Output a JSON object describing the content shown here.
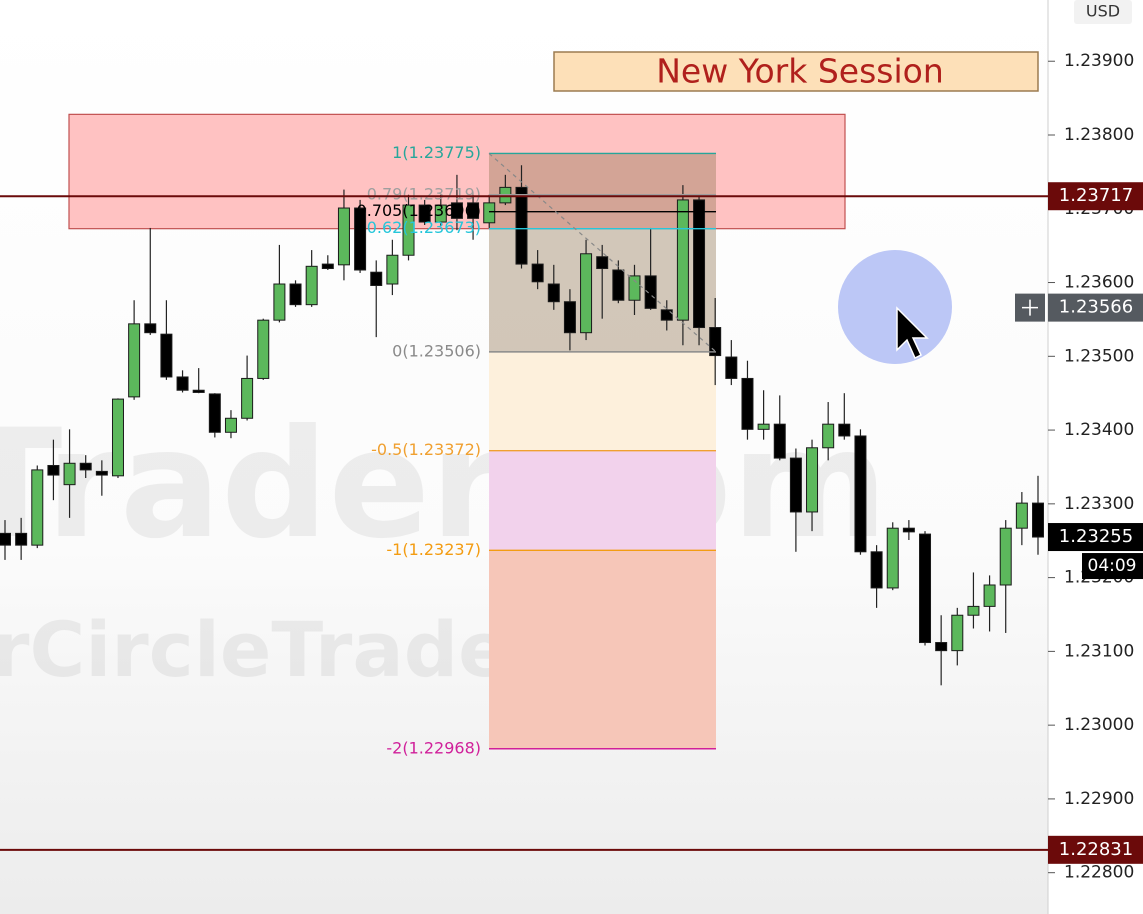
{
  "chart_data": {
    "type": "candlestick",
    "currency": "USD",
    "ylim": [
      1.22744,
      1.23983
    ],
    "yticks": [
      {
        "value": 1.239,
        "label": "1.23900"
      },
      {
        "value": 1.238,
        "label": "1.23800"
      },
      {
        "value": 1.237,
        "label": "1.23700"
      },
      {
        "value": 1.236,
        "label": "1.23600"
      },
      {
        "value": 1.235,
        "label": "1.23500"
      },
      {
        "value": 1.234,
        "label": "1.23400"
      },
      {
        "value": 1.233,
        "label": "1.23300"
      },
      {
        "value": 1.232,
        "label": "1.23200"
      },
      {
        "value": 1.231,
        "label": "1.23100"
      },
      {
        "value": 1.23,
        "label": "1.23000"
      },
      {
        "value": 1.229,
        "label": "1.22900"
      },
      {
        "value": 1.228,
        "label": "1.22800"
      }
    ],
    "up_color": "#5cb85c",
    "down_color": "#000000",
    "open": [
      1.2326,
      1.2326,
      1.23244,
      1.23352,
      1.23326,
      1.23355,
      1.23344,
      1.23338,
      1.23445,
      1.23544,
      1.2353,
      1.23472,
      1.23454,
      1.23449,
      1.23397,
      1.23416,
      1.2347,
      1.23549,
      1.23598,
      1.2357,
      1.23625,
      1.23624,
      1.23701,
      1.23614,
      1.23598,
      1.23637,
      1.23705,
      1.23682,
      1.23708,
      1.23708,
      1.23681,
      1.23708,
      1.23729,
      1.23625,
      1.23598,
      1.23574,
      1.23532,
      1.23635,
      1.23617,
      1.23576,
      1.23609,
      1.23563,
      1.23549,
      1.23712,
      1.23539,
      1.23499,
      1.2347,
      1.23401,
      1.23408,
      1.23362,
      1.23289,
      1.23376,
      1.23408,
      1.23392,
      1.23235,
      1.23186,
      1.23267,
      1.23259,
      1.23112,
      1.23101,
      1.23149,
      1.23161,
      1.2319,
      1.23267,
      1.23301
    ],
    "high": [
      1.23278,
      1.23281,
      1.23352,
      1.23387,
      1.23401,
      1.23366,
      1.23359,
      1.23443,
      1.23576,
      1.23674,
      1.23576,
      1.23481,
      1.23484,
      1.2345,
      1.23427,
      1.23501,
      1.23551,
      1.23651,
      1.23603,
      1.23644,
      1.23637,
      1.23726,
      1.23712,
      1.2363,
      1.23658,
      1.23719,
      1.23712,
      1.23719,
      1.23746,
      1.23719,
      1.23719,
      1.23746,
      1.23759,
      1.23644,
      1.23624,
      1.23591,
      1.23658,
      1.23651,
      1.2363,
      1.23624,
      1.23674,
      1.23576,
      1.23732,
      1.23719,
      1.23579,
      1.23522,
      1.23494,
      1.23454,
      1.23447,
      1.23375,
      1.23387,
      1.23438,
      1.2345,
      1.23401,
      1.23244,
      1.23275,
      1.23278,
      1.23263,
      1.23149,
      1.23159,
      1.23207,
      1.23203,
      1.23278,
      1.23316,
      1.23338
    ],
    "low": [
      1.23224,
      1.23224,
      1.2324,
      1.23305,
      1.23281,
      1.23335,
      1.23311,
      1.23335,
      1.23441,
      1.23529,
      1.23468,
      1.23451,
      1.2345,
      1.2339,
      1.23389,
      1.23413,
      1.23468,
      1.23546,
      1.23567,
      1.23567,
      1.23617,
      1.23603,
      1.23613,
      1.23526,
      1.23583,
      1.2363,
      1.23678,
      1.23676,
      1.23671,
      1.23658,
      1.23674,
      1.23705,
      1.23619,
      1.23591,
      1.23563,
      1.23508,
      1.23522,
      1.23551,
      1.23572,
      1.23556,
      1.23563,
      1.23535,
      1.23515,
      1.23515,
      1.23461,
      1.23461,
      1.23387,
      1.23387,
      1.23359,
      1.23235,
      1.23263,
      1.23359,
      1.23387,
      1.23231,
      1.23159,
      1.23183,
      1.23251,
      1.23108,
      1.23054,
      1.23081,
      1.23131,
      1.23127,
      1.23125,
      1.23244,
      1.23231
    ],
    "close": [
      1.23244,
      1.23244,
      1.23346,
      1.23339,
      1.23355,
      1.23346,
      1.23339,
      1.23442,
      1.23544,
      1.23532,
      1.23472,
      1.23454,
      1.23451,
      1.23397,
      1.23416,
      1.2347,
      1.23549,
      1.23598,
      1.2357,
      1.23622,
      1.23619,
      1.23701,
      1.23617,
      1.23596,
      1.23637,
      1.23705,
      1.23682,
      1.23705,
      1.23687,
      1.23687,
      1.23708,
      1.23729,
      1.23625,
      1.23601,
      1.23574,
      1.23532,
      1.23639,
      1.23619,
      1.23576,
      1.23609,
      1.23565,
      1.23549,
      1.23712,
      1.23539,
      1.23501,
      1.2347,
      1.23401,
      1.23408,
      1.23362,
      1.23289,
      1.23376,
      1.23408,
      1.23392,
      1.23235,
      1.23186,
      1.23267,
      1.23262,
      1.23112,
      1.23101,
      1.23149,
      1.23161,
      1.2319,
      1.23267,
      1.23301,
      1.23255
    ],
    "supply_zone": {
      "top": 1.23828,
      "bottom": 1.23673,
      "color": "#ffc2c2"
    },
    "session_label": "New York Session",
    "fib_levels": [
      {
        "label": "1(1.23775)",
        "price": 1.23775,
        "color": "#26a69a"
      },
      {
        "label": "0.79(1.23719)",
        "price": 1.23719,
        "color": "#9e9e9e"
      },
      {
        "label": "0.705(1.23696)",
        "price": 1.23696,
        "color": "#000000"
      },
      {
        "label": "0.62(1.23673)",
        "price": 1.23673,
        "color": "#26c6da"
      },
      {
        "label": "0(1.23506)",
        "price": 1.23506,
        "color": "#8a8a8a"
      },
      {
        "label": "-0.5(1.23372)",
        "price": 1.23372,
        "color": "#f0a030"
      },
      {
        "label": "-1(1.23237)",
        "price": 1.23237,
        "color": "#f39c12"
      },
      {
        "label": "-2(1.22968)",
        "price": 1.22968,
        "color": "#d0209a"
      }
    ],
    "price_lines": [
      {
        "value": 1.23717,
        "color": "#6b0a0a"
      },
      {
        "value": 1.22831,
        "color": "#6b0a0a"
      }
    ],
    "crosshair_price": 1.23566,
    "last_price": 1.23255,
    "countdown": "04:09",
    "watermarks": [
      "Trader.com",
      "rCircleTrader"
    ]
  }
}
